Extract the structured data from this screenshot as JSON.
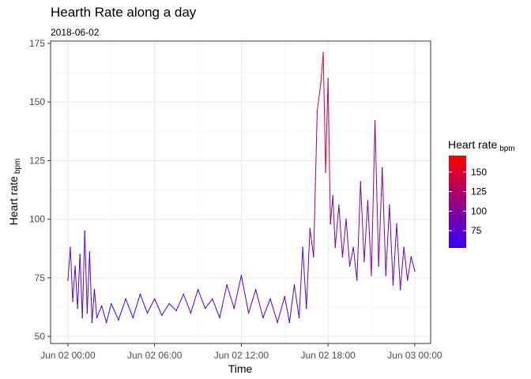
{
  "chart_data": {
    "type": "line",
    "title": "Hearth Rate along a day",
    "subtitle": "2018-06-02",
    "xlabel": "Time",
    "ylabel": "Heart rate",
    "ylabel_sub": "bpm",
    "xlim": [
      "Jun 01 22:48",
      "Jun 03 01:06"
    ],
    "ylim": [
      47,
      176
    ],
    "grid": true,
    "x_ticks": [
      "Jun 02 00:00",
      "Jun 02 06:00",
      "Jun 02 12:00",
      "Jun 02 18:00",
      "Jun 03 00:00"
    ],
    "y_ticks": [
      50,
      75,
      100,
      125,
      150,
      175
    ],
    "color_scale": {
      "low": "#3300ff",
      "high": "#ff0000",
      "min": 53,
      "max": 171
    },
    "legend": {
      "title": "Heart rate",
      "title_sub": "bpm",
      "placement": "right",
      "ticks": [
        75,
        100,
        125,
        150
      ]
    },
    "series": [
      {
        "x": [
          "Jun 02 00:00",
          "Jun 02 00:10",
          "Jun 02 00:20",
          "Jun 02 00:30",
          "Jun 02 00:40",
          "Jun 02 00:50",
          "Jun 02 01:00",
          "Jun 02 01:10",
          "Jun 02 01:20",
          "Jun 02 01:30",
          "Jun 02 01:40",
          "Jun 02 01:50",
          "Jun 02 02:00",
          "Jun 02 02:20",
          "Jun 02 02:40",
          "Jun 02 03:00",
          "Jun 02 03:30",
          "Jun 02 04:00",
          "Jun 02 04:30",
          "Jun 02 05:00",
          "Jun 02 05:30",
          "Jun 02 06:00",
          "Jun 02 06:30",
          "Jun 02 07:00",
          "Jun 02 07:30",
          "Jun 02 08:00",
          "Jun 02 08:30",
          "Jun 02 09:00",
          "Jun 02 09:30",
          "Jun 02 10:00",
          "Jun 02 10:30",
          "Jun 02 11:00",
          "Jun 02 11:30",
          "Jun 02 12:00",
          "Jun 02 12:30",
          "Jun 02 13:00",
          "Jun 02 13:30",
          "Jun 02 14:00",
          "Jun 02 14:30",
          "Jun 02 15:00",
          "Jun 02 15:20",
          "Jun 02 15:40",
          "Jun 02 16:00",
          "Jun 02 16:15",
          "Jun 02 16:30",
          "Jun 02 16:45",
          "Jun 02 17:00",
          "Jun 02 17:15",
          "Jun 02 17:30",
          "Jun 02 17:40",
          "Jun 02 17:50",
          "Jun 02 18:00",
          "Jun 02 18:10",
          "Jun 02 18:20",
          "Jun 02 18:30",
          "Jun 02 18:45",
          "Jun 02 19:00",
          "Jun 02 19:15",
          "Jun 02 19:30",
          "Jun 02 19:45",
          "Jun 02 20:00",
          "Jun 02 20:15",
          "Jun 02 20:30",
          "Jun 02 20:45",
          "Jun 02 21:00",
          "Jun 02 21:15",
          "Jun 02 21:30",
          "Jun 02 21:45",
          "Jun 02 22:00",
          "Jun 02 22:15",
          "Jun 02 22:30",
          "Jun 02 22:45",
          "Jun 02 23:00",
          "Jun 02 23:15",
          "Jun 02 23:30",
          "Jun 02 23:45",
          "Jun 03 00:00"
        ],
        "y": [
          74,
          88,
          65,
          80,
          62,
          85,
          58,
          95,
          60,
          86,
          56,
          70,
          58,
          63,
          56,
          64,
          57,
          66,
          58,
          68,
          60,
          66,
          59,
          64,
          61,
          68,
          60,
          70,
          62,
          66,
          58,
          72,
          62,
          76,
          60,
          70,
          58,
          66,
          56,
          67,
          56,
          72,
          58,
          88,
          62,
          96,
          84,
          146,
          158,
          171,
          120,
          160,
          98,
          110,
          88,
          106,
          84,
          100,
          80,
          88,
          74,
          116,
          82,
          108,
          76,
          142,
          80,
          122,
          76,
          106,
          72,
          98,
          70,
          88,
          74,
          84,
          78
        ]
      }
    ]
  }
}
